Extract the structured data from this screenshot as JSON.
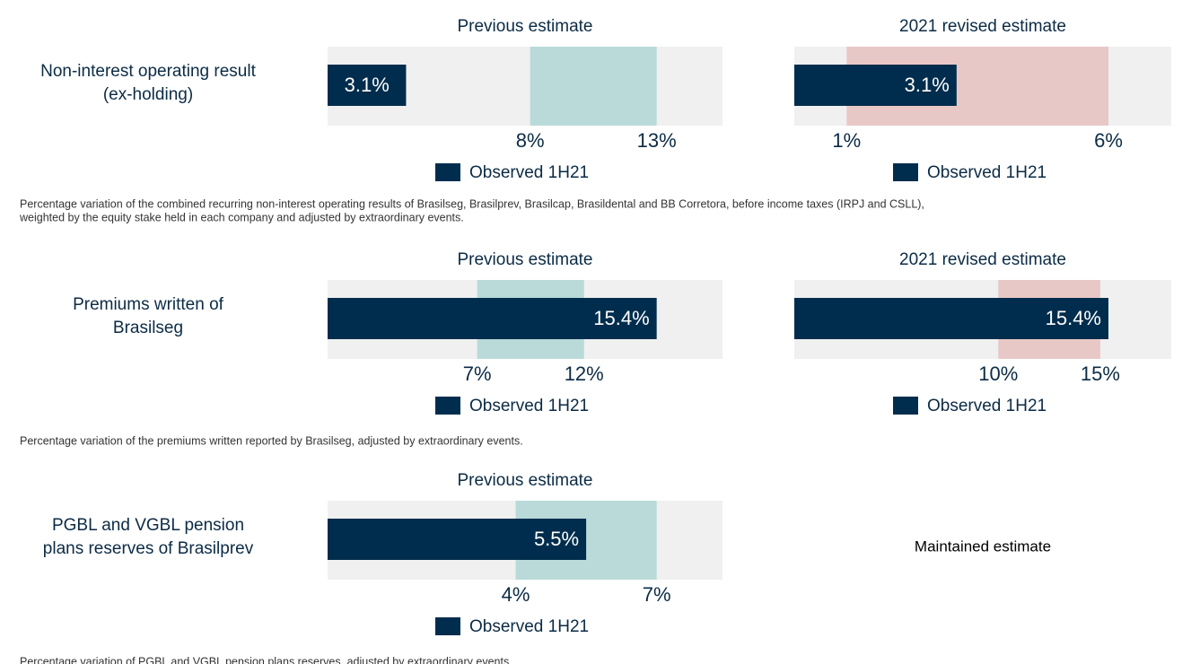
{
  "rows": [
    {
      "label": [
        "Non-interest operating result",
        "(ex-holding)"
      ],
      "previous": {
        "title": "Previous estimate",
        "low": {
          "value": 8,
          "label": "8%"
        },
        "high": {
          "value": 13,
          "label": "13%"
        },
        "observed": {
          "value": 3.1,
          "label": "3.1%"
        },
        "legend": "Observed 1H21"
      },
      "revised": {
        "title": "2021 revised estimate",
        "low": {
          "value": 1,
          "label": "1%"
        },
        "high": {
          "value": 6,
          "label": "6%"
        },
        "observed": {
          "value": 3.1,
          "label": "3.1%"
        },
        "legend": "Observed 1H21"
      },
      "note": [
        "Percentage variation of the combined recurring non-interest operating results of Brasilseg, Brasilprev, Brasilcap, Brasildental and BB Corretora, before income taxes (IRPJ and CSLL),",
        "weighted by the equity stake held in each company and adjusted by extraordinary events."
      ]
    },
    {
      "label": [
        "Premiums written of",
        "Brasilseg"
      ],
      "previous": {
        "title": "Previous estimate",
        "low": {
          "value": 7,
          "label": "7%"
        },
        "high": {
          "value": 12,
          "label": "12%"
        },
        "observed": {
          "value": 15.4,
          "label": "15.4%"
        },
        "legend": "Observed 1H21"
      },
      "revised": {
        "title": "2021 revised estimate",
        "low": {
          "value": 10,
          "label": "10%"
        },
        "high": {
          "value": 15,
          "label": "15%"
        },
        "observed": {
          "value": 15.4,
          "label": "15.4%"
        },
        "legend": "Observed 1H21"
      },
      "note": [
        "Percentage variation of the premiums written reported by Brasilseg, adjusted by extraordinary events."
      ]
    },
    {
      "label": [
        "PGBL and VGBL pension",
        "plans reserves of Brasilprev"
      ],
      "previous": {
        "title": "Previous estimate",
        "low": {
          "value": 4,
          "label": "4%"
        },
        "high": {
          "value": 7,
          "label": "7%"
        },
        "observed": {
          "value": 5.5,
          "label": "5.5%"
        },
        "legend": "Observed 1H21"
      },
      "maintained": "Maintained estimate",
      "note": [
        "Percentage variation of PGBL and VGBL pension plans reserves, adjusted by extraordinary events."
      ]
    }
  ]
}
